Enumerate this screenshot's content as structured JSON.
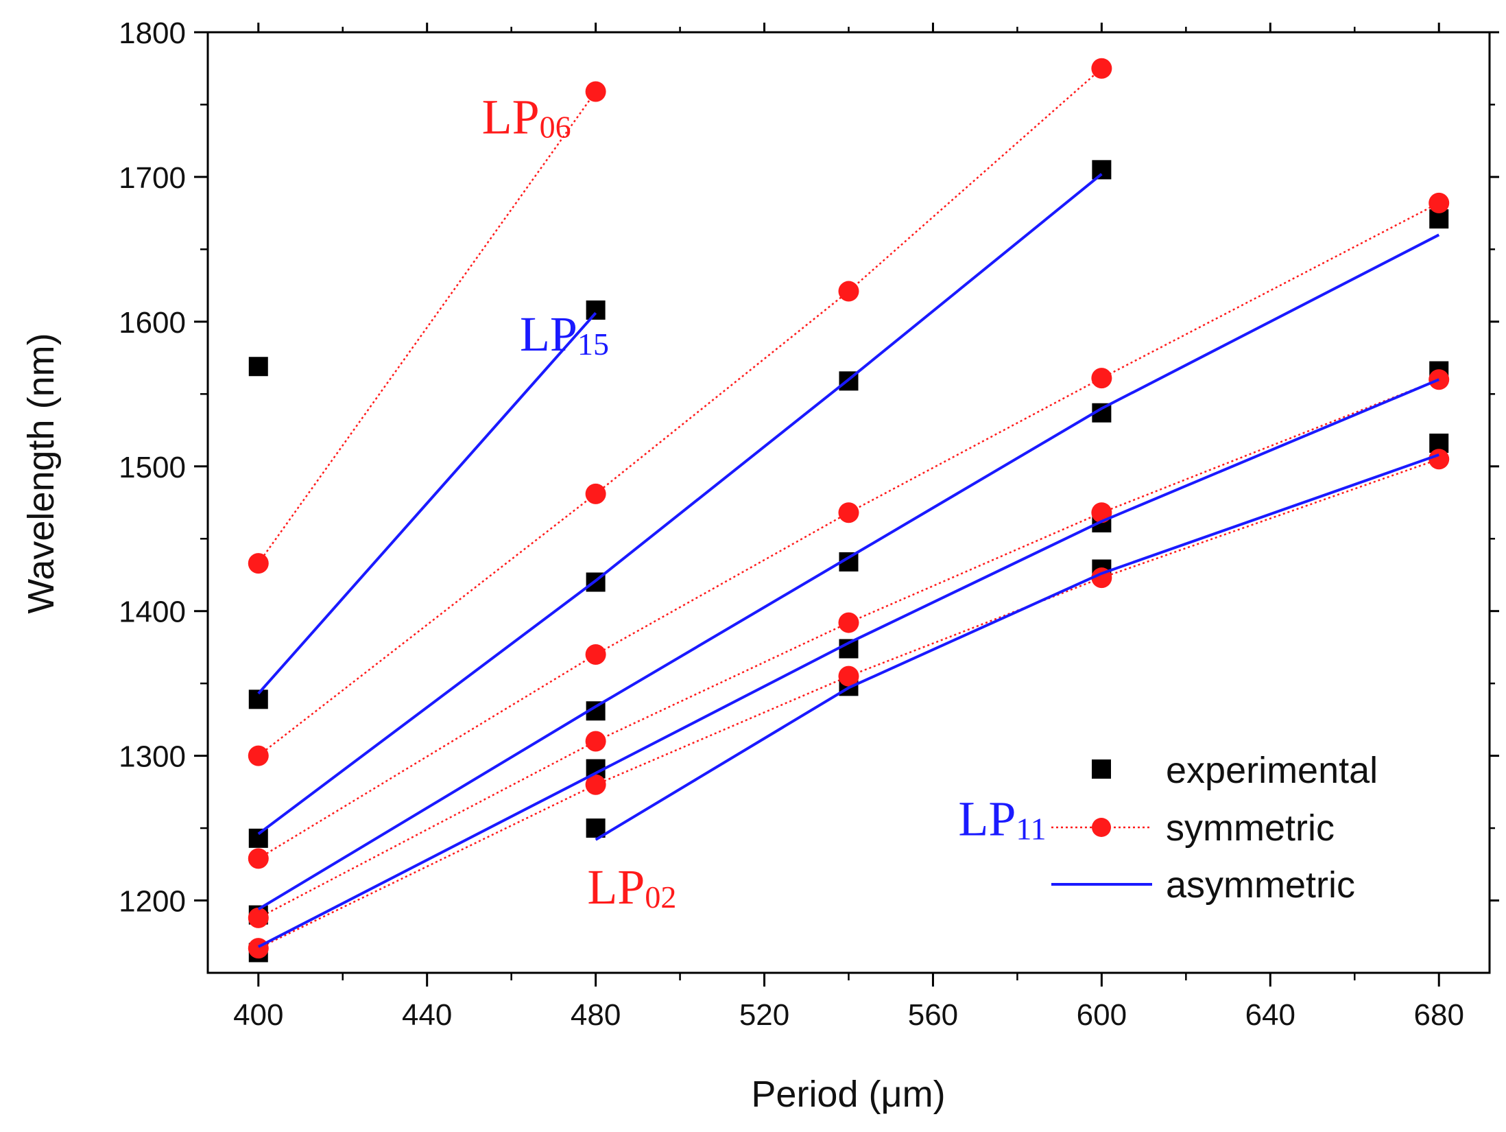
{
  "chart_data": {
    "type": "scatter",
    "title": "",
    "xlabel": "Period (μm)",
    "ylabel": "Wavelength (nm)",
    "xlim": [
      388,
      692
    ],
    "ylim": [
      1150,
      1800
    ],
    "xticks": [
      400,
      440,
      480,
      520,
      560,
      600,
      640,
      680
    ],
    "yticks": [
      1200,
      1300,
      1400,
      1500,
      1600,
      1700,
      1800
    ],
    "grid": false,
    "legend_position": "bottom-right",
    "legend": {
      "experimental": "experimental",
      "symmetric": "symmetric",
      "asymmetric": "asymmetric"
    },
    "colors": {
      "experimental": "#000000",
      "symmetric": "#ff1a1a",
      "asymmetric": "#1a1aff"
    },
    "annotations": [
      {
        "base": "LP",
        "sub": "06",
        "color": "#ff1a1a",
        "x": 453,
        "y": 1730
      },
      {
        "base": "LP",
        "sub": "15",
        "color": "#1a1aff",
        "x": 462,
        "y": 1580
      },
      {
        "base": "LP",
        "sub": "11",
        "color": "#1a1aff",
        "x": 566,
        "y": 1245
      },
      {
        "base": "LP",
        "sub": "02",
        "color": "#ff1a1a",
        "x": 478,
        "y": 1198
      }
    ],
    "series": [
      {
        "name": "experimental",
        "style": "square",
        "points": [
          [
            400,
            1569
          ],
          [
            400,
            1339
          ],
          [
            400,
            1243
          ],
          [
            400,
            1190
          ],
          [
            400,
            1164
          ],
          [
            480,
            1608
          ],
          [
            480,
            1420
          ],
          [
            480,
            1331
          ],
          [
            480,
            1291
          ],
          [
            480,
            1250
          ],
          [
            540,
            1559
          ],
          [
            540,
            1434
          ],
          [
            540,
            1374
          ],
          [
            540,
            1348
          ],
          [
            600,
            1705
          ],
          [
            600,
            1537
          ],
          [
            600,
            1461
          ],
          [
            600,
            1429
          ],
          [
            680,
            1671
          ],
          [
            680,
            1566
          ],
          [
            680,
            1516
          ]
        ]
      },
      {
        "name": "symmetric",
        "style": "circle-dotted",
        "curves": [
          [
            [
              400,
              1433
            ],
            [
              480,
              1759
            ]
          ],
          [
            [
              400,
              1300
            ],
            [
              480,
              1481
            ],
            [
              540,
              1621
            ],
            [
              600,
              1775
            ]
          ],
          [
            [
              400,
              1229
            ],
            [
              480,
              1370
            ],
            [
              540,
              1468
            ],
            [
              600,
              1561
            ],
            [
              680,
              1682
            ]
          ],
          [
            [
              400,
              1188
            ],
            [
              480,
              1310
            ],
            [
              540,
              1392
            ],
            [
              600,
              1468
            ],
            [
              680,
              1560
            ]
          ],
          [
            [
              400,
              1167
            ],
            [
              480,
              1280
            ],
            [
              540,
              1355
            ],
            [
              600,
              1423
            ],
            [
              680,
              1505
            ]
          ]
        ]
      },
      {
        "name": "asymmetric",
        "style": "line",
        "curves": [
          [
            [
              400,
              1343
            ],
            [
              480,
              1606
            ]
          ],
          [
            [
              400,
              1246
            ],
            [
              480,
              1421
            ],
            [
              540,
              1560
            ],
            [
              600,
              1702
            ]
          ],
          [
            [
              400,
              1194
            ],
            [
              480,
              1334
            ],
            [
              540,
              1437
            ],
            [
              600,
              1540
            ],
            [
              680,
              1660
            ]
          ],
          [
            [
              400,
              1168
            ],
            [
              480,
              1288
            ],
            [
              540,
              1378
            ],
            [
              600,
              1462
            ],
            [
              680,
              1560
            ]
          ],
          [
            [
              480,
              1242
            ],
            [
              540,
              1347
            ],
            [
              600,
              1426
            ],
            [
              680,
              1508
            ]
          ]
        ]
      }
    ]
  }
}
